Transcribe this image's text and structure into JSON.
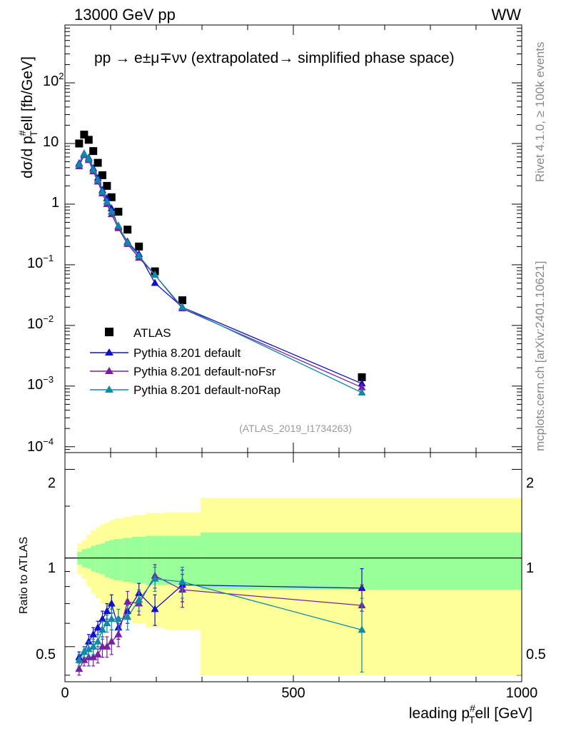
{
  "header": {
    "energy_label": "13000 GeV pp",
    "process_label": "WW",
    "rivet_label": "Rivet 4.1.0, ≥ 100k events",
    "mcplots_label": "mcplots.cern.ch [arXiv:2401.10621]"
  },
  "main_panel": {
    "title": "pp → e±μ∓νν (extrapolated→ simplified phase space)",
    "ylabel": "dσ/d p T#ell [fb/GeV]",
    "ylabel_parts": {
      "a": "dσ/d p",
      "sub": "T",
      "sup": "#",
      "b": "ell [fb/GeV]"
    },
    "analysis_tag": "(ATLAS_2019_I1734263)",
    "y_tick_labels": [
      {
        "base": "10",
        "exp": "2"
      },
      {
        "base": "10",
        "exp": ""
      },
      {
        "base": "1",
        "exp": ""
      },
      {
        "base": "10",
        "exp": "−1"
      },
      {
        "base": "10",
        "exp": "−2"
      },
      {
        "base": "10",
        "exp": "−3"
      },
      {
        "base": "10",
        "exp": "−4"
      }
    ]
  },
  "ratio_panel": {
    "ylabel": "Ratio to ATLAS",
    "y_tick_labels": [
      "2",
      "1",
      "0.5"
    ]
  },
  "x_axis": {
    "label": "leading p T#ell [GeV]",
    "label_parts": {
      "a": "leading p",
      "sub": "T",
      "sup": "#",
      "b": "ell [GeV]"
    },
    "tick_labels": [
      "0",
      "500",
      "1000"
    ]
  },
  "legend": [
    {
      "label": "ATLAS",
      "color": "#000000",
      "marker": "square"
    },
    {
      "label": "Pythia 8.201 default",
      "color": "#1010cc",
      "marker": "triangle"
    },
    {
      "label": "Pythia 8.201 default-noFsr",
      "color": "#7b1fa2",
      "marker": "triangle"
    },
    {
      "label": "Pythia 8.201 default-noRap",
      "color": "#0e8aa6",
      "marker": "triangle"
    }
  ],
  "chart_data": {
    "type": "line",
    "title": "pp → e±μ∓νν (extrapolated→ simplified phase space)",
    "xlabel": "leading pT#ell [GeV]",
    "ylabel": "dσ/d pT#ell [fb/GeV]",
    "xlim": [
      0,
      1000
    ],
    "ylim": [
      8e-05,
      900
    ],
    "yscale": "log",
    "x": [
      31,
      42,
      52,
      62,
      72,
      82,
      92,
      102,
      117,
      137,
      162,
      197,
      257,
      650
    ],
    "bin_edges": [
      27,
      37,
      47,
      57,
      67,
      77,
      87,
      97,
      107,
      127,
      147,
      177,
      217,
      297,
      1000
    ],
    "series": [
      {
        "name": "ATLAS",
        "values": [
          10,
          14,
          11.5,
          7.5,
          4.8,
          3.0,
          2.0,
          1.3,
          0.75,
          0.38,
          0.2,
          0.078,
          0.026,
          0.0014
        ]
      },
      {
        "name": "Pythia 8.201 default",
        "values": [
          4.7,
          6.8,
          5.8,
          3.9,
          2.7,
          1.7,
          1.25,
          0.85,
          0.42,
          0.24,
          0.15,
          0.05,
          0.02,
          0.0011
        ]
      },
      {
        "name": "Pythia 8.201 default-noFsr",
        "values": [
          4.2,
          6.4,
          5.3,
          3.45,
          2.35,
          1.5,
          1.0,
          0.68,
          0.4,
          0.22,
          0.13,
          0.068,
          0.019,
          0.00095
        ]
      },
      {
        "name": "Pythia 8.201 default-noRap",
        "values": [
          4.5,
          6.7,
          5.6,
          3.7,
          2.5,
          1.6,
          1.1,
          0.75,
          0.44,
          0.23,
          0.14,
          0.068,
          0.02,
          0.00078
        ]
      }
    ],
    "ratio": {
      "ylabel": "Ratio to ATLAS",
      "ylim": [
        0.38,
        2.28
      ],
      "yscale": "log",
      "series": [
        {
          "name": "Pythia 8.201 default",
          "values": [
            0.46,
            0.48,
            0.52,
            0.55,
            0.58,
            0.62,
            0.66,
            0.7,
            0.58,
            0.66,
            0.76,
            0.67,
            0.81,
            0.79
          ],
          "errors": [
            0.02,
            0.02,
            0.03,
            0.03,
            0.03,
            0.04,
            0.04,
            0.05,
            0.05,
            0.06,
            0.06,
            0.08,
            0.1,
            0.13
          ]
        },
        {
          "name": "Pythia 8.201 default-noFsr",
          "values": [
            0.42,
            0.45,
            0.46,
            0.46,
            0.47,
            0.5,
            0.5,
            0.52,
            0.55,
            0.71,
            0.7,
            0.87,
            0.78,
            0.69
          ],
          "errors": [
            0.02,
            0.02,
            0.03,
            0.03,
            0.03,
            0.04,
            0.04,
            0.05,
            0.05,
            0.06,
            0.06,
            0.08,
            0.1,
            0.12
          ]
        },
        {
          "name": "Pythia 8.201 default-noRap",
          "values": [
            0.45,
            0.48,
            0.49,
            0.5,
            0.52,
            0.57,
            0.6,
            0.62,
            0.62,
            0.63,
            0.72,
            0.85,
            0.83,
            0.57
          ],
          "errors": [
            0.02,
            0.02,
            0.03,
            0.03,
            0.03,
            0.04,
            0.04,
            0.05,
            0.05,
            0.06,
            0.06,
            0.08,
            0.1,
            0.16
          ]
        }
      ],
      "band_inner_half": [
        0.05,
        0.07,
        0.08,
        0.1,
        0.11,
        0.12,
        0.14,
        0.15,
        0.16,
        0.17,
        0.18,
        0.19,
        0.19,
        0.22
      ],
      "band_outer_half": [
        0.12,
        0.15,
        0.2,
        0.24,
        0.27,
        0.3,
        0.32,
        0.34,
        0.36,
        0.38,
        0.4,
        0.42,
        0.43,
        0.6
      ],
      "band_colors": {
        "inner": "#99ff99",
        "outer": "#ffff99"
      }
    }
  }
}
